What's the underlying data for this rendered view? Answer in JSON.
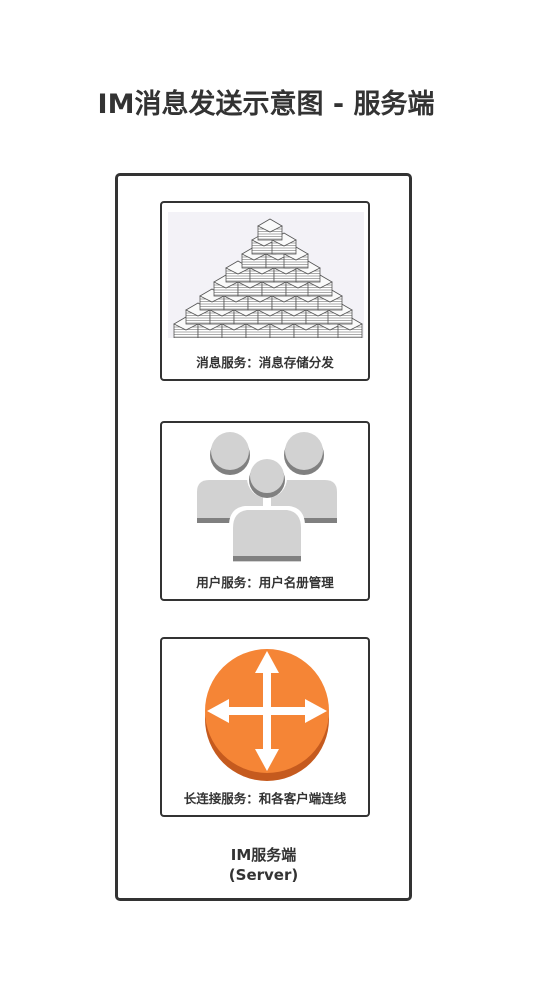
{
  "title": "IM消息发送示意图 - 服务端",
  "server": {
    "label_line1": "IM服务端",
    "label_line2": "(Server)"
  },
  "cards": [
    {
      "label": "消息服务：消息存储分发",
      "icon": "document-stack-icon"
    },
    {
      "label": "用户服务：用户名册管理",
      "icon": "users-group-icon"
    },
    {
      "label": "长连接服务：和各客户端连线",
      "icon": "router-icon"
    }
  ],
  "colors": {
    "border": "#333333",
    "router_orange": "#f58536",
    "router_shadow": "#c55a1e",
    "user_gray": "#d2d2d2",
    "user_shadow": "#808080"
  }
}
